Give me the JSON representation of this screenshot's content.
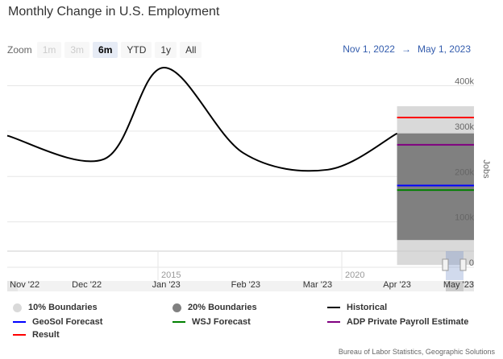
{
  "title": "Monthly Change in U.S. Employment",
  "zoom": {
    "label": "Zoom",
    "buttons": [
      {
        "label": "1m",
        "state": "disabled"
      },
      {
        "label": "3m",
        "state": "disabled"
      },
      {
        "label": "6m",
        "state": "active"
      },
      {
        "label": "YTD",
        "state": "enabled"
      },
      {
        "label": "1y",
        "state": "enabled"
      },
      {
        "label": "All",
        "state": "enabled"
      }
    ]
  },
  "range": {
    "from": "Nov 1, 2022",
    "arrow": "→",
    "to": "May 1, 2023"
  },
  "chart_data": {
    "type": "line",
    "ylabel": "Jobs",
    "ylim": [
      0,
      440000
    ],
    "yticks": [
      {
        "value": 0,
        "label": "0"
      },
      {
        "value": 100000,
        "label": "100k"
      },
      {
        "value": 200000,
        "label": "200k"
      },
      {
        "value": 300000,
        "label": "300k"
      },
      {
        "value": 400000,
        "label": "400k"
      }
    ],
    "xlim": [
      "2022-10-31",
      "2023-05-01"
    ],
    "xticks": [
      {
        "date": "2022-11-01",
        "label": "Nov '22"
      },
      {
        "date": "2022-12-01",
        "label": "Dec '22"
      },
      {
        "date": "2023-01-01",
        "label": "Jan '23"
      },
      {
        "date": "2023-02-01",
        "label": "Feb '23"
      },
      {
        "date": "2023-03-01",
        "label": "Mar '23"
      },
      {
        "date": "2023-04-01",
        "label": "Apr '23"
      },
      {
        "date": "2023-05-01",
        "label": "May '23"
      }
    ],
    "series": [
      {
        "name": "Historical",
        "color": "#000000",
        "points": [
          {
            "date": "2022-10-31",
            "value": 290000
          },
          {
            "date": "2022-12-08",
            "value": 239000
          },
          {
            "date": "2022-12-31",
            "value": 440000
          },
          {
            "date": "2023-01-31",
            "value": 252000
          },
          {
            "date": "2023-03-05",
            "value": 215000
          },
          {
            "date": "2023-04-01",
            "value": 295000
          }
        ]
      }
    ],
    "forecast_window": {
      "from": "2023-04-01",
      "to": "2023-05-01"
    },
    "boundaries": [
      {
        "name": "10% Boundaries",
        "color": "#d9d9d9",
        "low": 5000,
        "high": 355000
      },
      {
        "name": "20% Boundaries",
        "color": "#808080",
        "low": 60000,
        "high": 295000
      }
    ],
    "estimates": [
      {
        "name": "GeoSol Forecast",
        "color": "#0000ff",
        "value": 180000
      },
      {
        "name": "WSJ Forecast",
        "color": "#008000",
        "value": 170000
      },
      {
        "name": "ADP Private Payroll Estimate",
        "color": "#800080",
        "value": 270000
      },
      {
        "name": "Result",
        "color": "#ff0000",
        "value": 330000
      }
    ],
    "navigator": {
      "labels": [
        "2015",
        "2020"
      ]
    }
  },
  "legend": [
    {
      "name": "10% Boundaries",
      "kind": "dot",
      "color": "#d9d9d9"
    },
    {
      "name": "20% Boundaries",
      "kind": "dot",
      "color": "#808080"
    },
    {
      "name": "Historical",
      "kind": "line",
      "color": "#000000"
    },
    {
      "name": "GeoSol Forecast",
      "kind": "line",
      "color": "#0000ff"
    },
    {
      "name": "WSJ Forecast",
      "kind": "line",
      "color": "#008000"
    },
    {
      "name": "ADP Private Payroll Estimate",
      "kind": "line",
      "color": "#800080"
    },
    {
      "name": "Result",
      "kind": "line",
      "color": "#ff0000"
    }
  ],
  "credits": "Bureau of Labor Statistics, Geographic Solutions"
}
